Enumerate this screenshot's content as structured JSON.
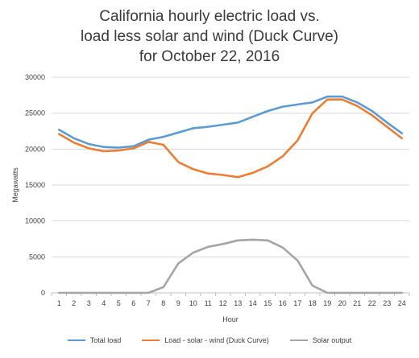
{
  "chart_data": {
    "type": "line",
    "title_lines": [
      "California hourly electric load vs.",
      "load less solar and wind (Duck Curve)",
      "for October 22, 2016"
    ],
    "xlabel": "Hour",
    "ylabel": "Megawatts",
    "x": [
      1,
      2,
      3,
      4,
      5,
      6,
      7,
      8,
      9,
      10,
      11,
      12,
      13,
      14,
      15,
      16,
      17,
      18,
      19,
      20,
      21,
      22,
      23,
      24
    ],
    "ylim": [
      0,
      30000
    ],
    "yticks": [
      0,
      5000,
      10000,
      15000,
      20000,
      25000,
      30000
    ],
    "grid": true,
    "legend_position": "bottom",
    "series": [
      {
        "name": "Total load",
        "color": "#5b9bd5",
        "values": [
          22700,
          21500,
          20700,
          20300,
          20200,
          20400,
          21300,
          21700,
          22300,
          22900,
          23100,
          23400,
          23700,
          24500,
          25300,
          25900,
          26200,
          26500,
          27300,
          27300,
          26500,
          25300,
          23700,
          22200
        ]
      },
      {
        "name": "Load - solar - wind (Duck Curve)",
        "color": "#ed7d31",
        "values": [
          22100,
          20900,
          20100,
          19700,
          19800,
          20100,
          21000,
          20600,
          18200,
          17200,
          16600,
          16400,
          16100,
          16700,
          17600,
          19000,
          21200,
          25000,
          26900,
          26900,
          26000,
          24700,
          23100,
          21500
        ]
      },
      {
        "name": "Solar output",
        "color": "#a5a5a5",
        "values": [
          0,
          0,
          0,
          0,
          0,
          0,
          0,
          800,
          4100,
          5600,
          6400,
          6800,
          7300,
          7400,
          7300,
          6300,
          4500,
          1000,
          0,
          0,
          0,
          0,
          0,
          0
        ]
      }
    ]
  }
}
